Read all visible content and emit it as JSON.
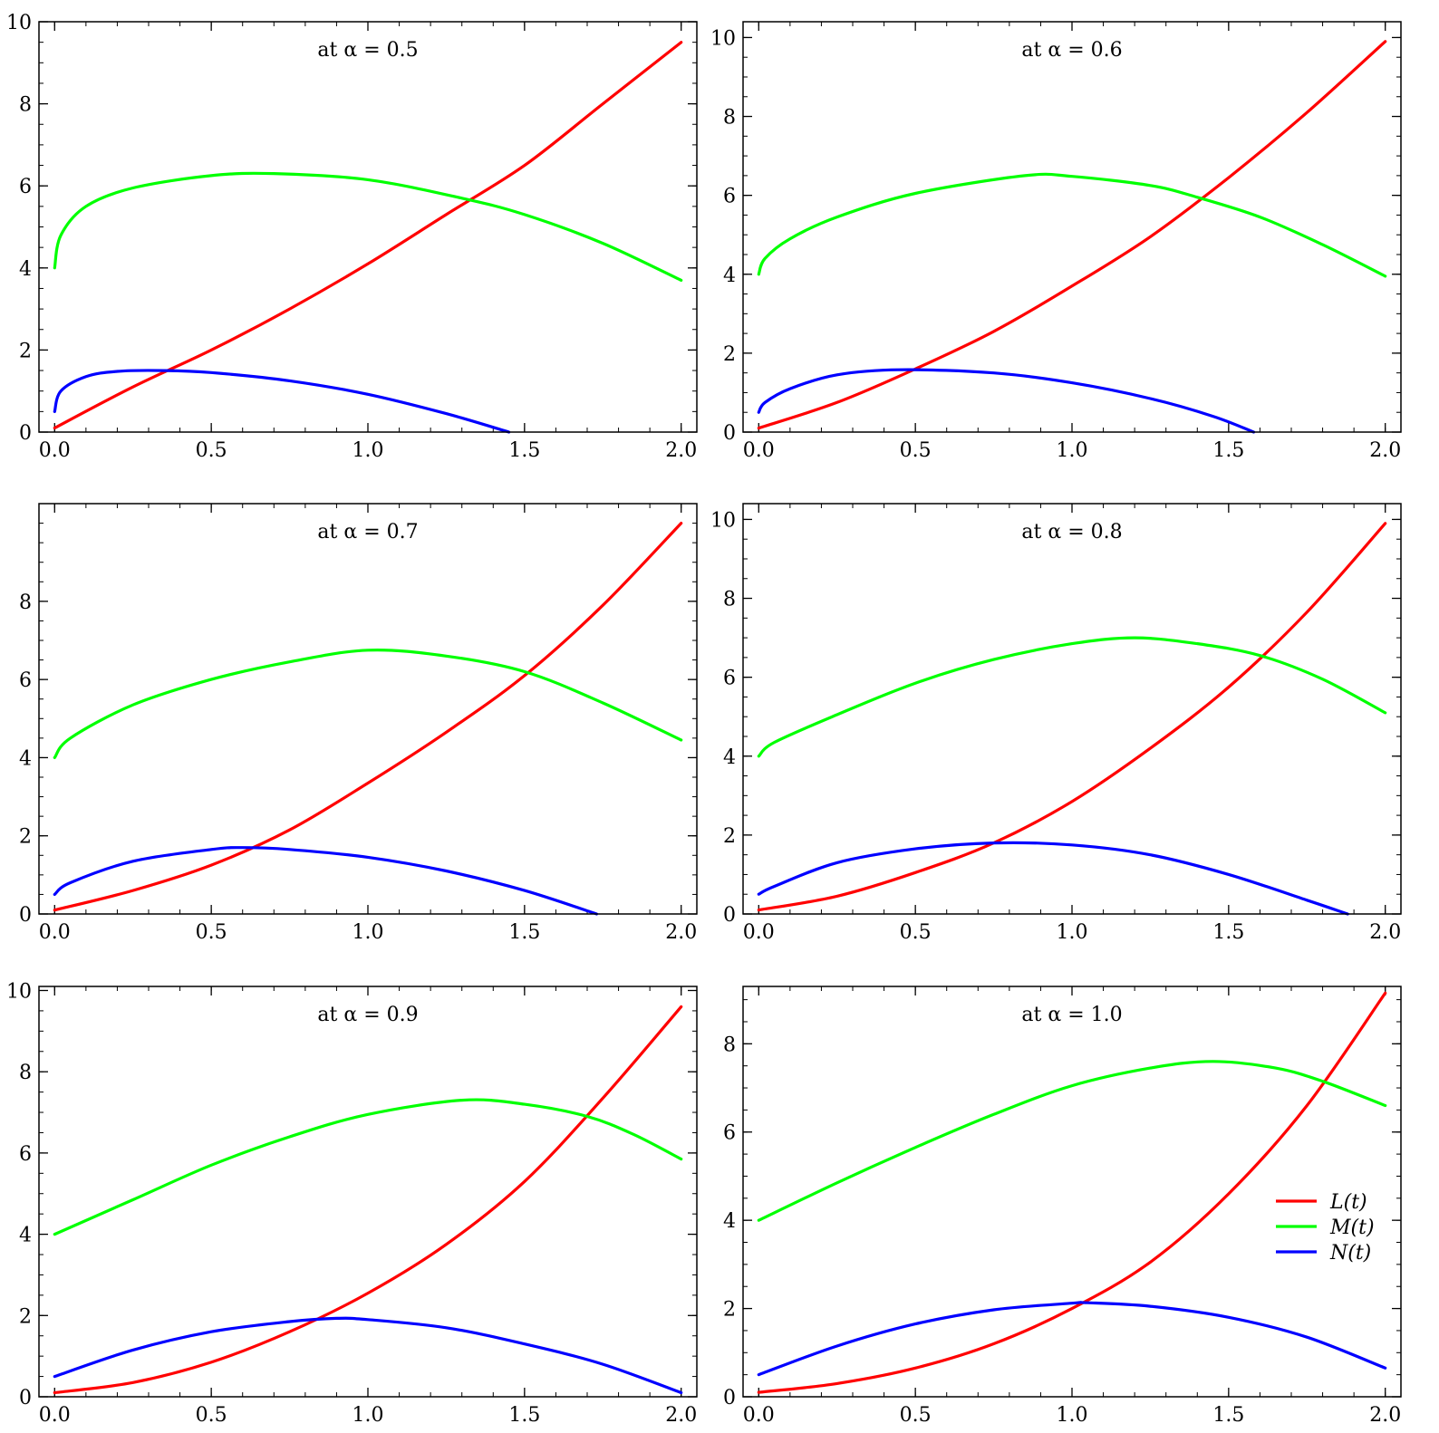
{
  "legend": {
    "placement": "right-center of last panel",
    "entries": [
      {
        "label": "L(t)",
        "color": "#ff0000"
      },
      {
        "label": "M(t)",
        "color": "#00ff00"
      },
      {
        "label": "N(t)",
        "color": "#0000ff"
      }
    ]
  },
  "chart_data": [
    {
      "type": "line",
      "title": "at α = 0.5",
      "xlim": [
        -0.05,
        2.05
      ],
      "ylim": [
        0,
        10
      ],
      "xticks": [
        "0.0",
        "0.5",
        "1.0",
        "1.5",
        "2.0"
      ],
      "xtick_values": [
        0,
        0.5,
        1,
        1.5,
        2
      ],
      "yticks": [
        "0",
        "2",
        "4",
        "6",
        "8",
        "10"
      ],
      "ytick_values": [
        0,
        2,
        4,
        6,
        8,
        10
      ],
      "series": [
        {
          "name": "L(t)",
          "color": "#ff0000",
          "x": [
            0,
            0.25,
            0.5,
            0.75,
            1.0,
            1.25,
            1.5,
            1.75,
            2.0
          ],
          "y": [
            0.1,
            1.1,
            2.0,
            3.0,
            4.1,
            5.3,
            6.5,
            8.0,
            9.5
          ]
        },
        {
          "name": "M(t)",
          "color": "#00ff00",
          "x": [
            0,
            0.02,
            0.1,
            0.25,
            0.5,
            0.7,
            1.0,
            1.3,
            1.5,
            1.75,
            2.0
          ],
          "y": [
            4.0,
            4.8,
            5.5,
            5.95,
            6.25,
            6.3,
            6.15,
            5.7,
            5.3,
            4.6,
            3.7
          ]
        },
        {
          "name": "N(t)",
          "color": "#0000ff",
          "x": [
            0,
            0.02,
            0.1,
            0.2,
            0.35,
            0.5,
            0.75,
            1.0,
            1.25,
            1.45
          ],
          "y": [
            0.5,
            1.0,
            1.35,
            1.48,
            1.5,
            1.45,
            1.25,
            0.92,
            0.45,
            0.0
          ]
        }
      ]
    },
    {
      "type": "line",
      "title": "at α = 0.6",
      "xlim": [
        -0.05,
        2.05
      ],
      "ylim": [
        0,
        10.4
      ],
      "xticks": [
        "0.0",
        "0.5",
        "1.0",
        "1.5",
        "2.0"
      ],
      "xtick_values": [
        0,
        0.5,
        1,
        1.5,
        2
      ],
      "yticks": [
        "0",
        "2",
        "4",
        "6",
        "8",
        "10"
      ],
      "ytick_values": [
        0,
        2,
        4,
        6,
        8,
        10
      ],
      "series": [
        {
          "name": "L(t)",
          "color": "#ff0000",
          "x": [
            0,
            0.25,
            0.5,
            0.75,
            1.0,
            1.25,
            1.5,
            1.75,
            2.0
          ],
          "y": [
            0.1,
            0.75,
            1.6,
            2.55,
            3.7,
            4.95,
            6.45,
            8.1,
            9.9
          ]
        },
        {
          "name": "M(t)",
          "color": "#00ff00",
          "x": [
            0,
            0.02,
            0.1,
            0.25,
            0.5,
            0.85,
            1.0,
            1.25,
            1.4,
            1.6,
            1.8,
            2.0
          ],
          "y": [
            4.0,
            4.4,
            4.9,
            5.45,
            6.05,
            6.5,
            6.48,
            6.25,
            5.95,
            5.45,
            4.75,
            3.95
          ]
        },
        {
          "name": "N(t)",
          "color": "#0000ff",
          "x": [
            0,
            0.02,
            0.1,
            0.25,
            0.45,
            0.75,
            1.0,
            1.25,
            1.45,
            1.58
          ],
          "y": [
            0.5,
            0.75,
            1.1,
            1.45,
            1.58,
            1.5,
            1.25,
            0.85,
            0.4,
            0.0
          ]
        }
      ]
    },
    {
      "type": "line",
      "title": "at α = 0.7",
      "xlim": [
        -0.05,
        2.05
      ],
      "ylim": [
        0,
        10.5
      ],
      "xticks": [
        "0.0",
        "0.5",
        "1.0",
        "1.5",
        "2.0"
      ],
      "xtick_values": [
        0,
        0.5,
        1,
        1.5,
        2
      ],
      "yticks": [
        "0",
        "2",
        "4",
        "6",
        "8"
      ],
      "ytick_values": [
        0,
        2,
        4,
        6,
        8
      ],
      "series": [
        {
          "name": "L(t)",
          "color": "#ff0000",
          "x": [
            0,
            0.25,
            0.5,
            0.75,
            1.0,
            1.25,
            1.5,
            1.75,
            2.0
          ],
          "y": [
            0.1,
            0.6,
            1.25,
            2.15,
            3.35,
            4.65,
            6.1,
            7.9,
            10.0
          ]
        },
        {
          "name": "M(t)",
          "color": "#00ff00",
          "x": [
            0,
            0.05,
            0.25,
            0.5,
            0.75,
            1.0,
            1.25,
            1.5,
            1.75,
            2.0
          ],
          "y": [
            4.0,
            4.5,
            5.35,
            6.0,
            6.45,
            6.75,
            6.6,
            6.2,
            5.4,
            4.45
          ]
        },
        {
          "name": "N(t)",
          "color": "#0000ff",
          "x": [
            0,
            0.05,
            0.25,
            0.5,
            0.6,
            0.75,
            1.0,
            1.25,
            1.5,
            1.73
          ],
          "y": [
            0.5,
            0.8,
            1.35,
            1.65,
            1.7,
            1.65,
            1.45,
            1.1,
            0.6,
            0.0
          ]
        }
      ]
    },
    {
      "type": "line",
      "title": "at α = 0.8",
      "xlim": [
        -0.05,
        2.05
      ],
      "ylim": [
        0,
        10.4
      ],
      "xticks": [
        "0.0",
        "0.5",
        "1.0",
        "1.5",
        "2.0"
      ],
      "xtick_values": [
        0,
        0.5,
        1,
        1.5,
        2
      ],
      "yticks": [
        "0",
        "2",
        "4",
        "6",
        "8",
        "10"
      ],
      "ytick_values": [
        0,
        2,
        4,
        6,
        8,
        10
      ],
      "series": [
        {
          "name": "L(t)",
          "color": "#ff0000",
          "x": [
            0,
            0.25,
            0.5,
            0.75,
            1.0,
            1.25,
            1.5,
            1.75,
            2.0
          ],
          "y": [
            0.1,
            0.45,
            1.05,
            1.8,
            2.85,
            4.2,
            5.75,
            7.65,
            9.9
          ]
        },
        {
          "name": "M(t)",
          "color": "#00ff00",
          "x": [
            0,
            0.05,
            0.25,
            0.5,
            0.75,
            1.0,
            1.2,
            1.4,
            1.6,
            1.8,
            2.0
          ],
          "y": [
            4.0,
            4.35,
            5.05,
            5.85,
            6.45,
            6.85,
            7.0,
            6.85,
            6.55,
            5.95,
            5.1
          ]
        },
        {
          "name": "N(t)",
          "color": "#0000ff",
          "x": [
            0,
            0.05,
            0.25,
            0.5,
            0.75,
            1.0,
            1.25,
            1.5,
            1.75,
            1.88
          ],
          "y": [
            0.5,
            0.7,
            1.3,
            1.65,
            1.8,
            1.75,
            1.5,
            1.0,
            0.35,
            0.0
          ]
        }
      ]
    },
    {
      "type": "line",
      "title": "at α = 0.9",
      "xlim": [
        -0.05,
        2.05
      ],
      "ylim": [
        0,
        10.1
      ],
      "xticks": [
        "0.0",
        "0.5",
        "1.0",
        "1.5",
        "2.0"
      ],
      "xtick_values": [
        0,
        0.5,
        1,
        1.5,
        2
      ],
      "yticks": [
        "0",
        "2",
        "4",
        "6",
        "8",
        "10"
      ],
      "ytick_values": [
        0,
        2,
        4,
        6,
        8,
        10
      ],
      "series": [
        {
          "name": "L(t)",
          "color": "#ff0000",
          "x": [
            0,
            0.25,
            0.5,
            0.75,
            1.0,
            1.25,
            1.5,
            1.75,
            2.0
          ],
          "y": [
            0.1,
            0.35,
            0.85,
            1.6,
            2.55,
            3.75,
            5.3,
            7.35,
            9.6
          ]
        },
        {
          "name": "M(t)",
          "color": "#00ff00",
          "x": [
            0,
            0.25,
            0.5,
            0.75,
            1.0,
            1.3,
            1.5,
            1.7,
            1.85,
            2.0
          ],
          "y": [
            4.0,
            4.85,
            5.7,
            6.4,
            6.95,
            7.3,
            7.2,
            6.9,
            6.45,
            5.85
          ]
        },
        {
          "name": "N(t)",
          "color": "#0000ff",
          "x": [
            0,
            0.25,
            0.5,
            0.75,
            0.9,
            1.0,
            1.25,
            1.5,
            1.75,
            2.0
          ],
          "y": [
            0.5,
            1.15,
            1.6,
            1.85,
            1.93,
            1.9,
            1.7,
            1.3,
            0.8,
            0.1
          ]
        }
      ]
    },
    {
      "type": "line",
      "title": "at α = 1.0",
      "xlim": [
        -0.05,
        2.05
      ],
      "ylim": [
        0,
        9.3
      ],
      "xticks": [
        "0.0",
        "0.5",
        "1.0",
        "1.5",
        "2.0"
      ],
      "xtick_values": [
        0,
        0.5,
        1,
        1.5,
        2
      ],
      "yticks": [
        "0",
        "2",
        "4",
        "6",
        "8"
      ],
      "ytick_values": [
        0,
        2,
        4,
        6,
        8
      ],
      "series": [
        {
          "name": "L(t)",
          "color": "#ff0000",
          "x": [
            0,
            0.25,
            0.5,
            0.75,
            1.0,
            1.25,
            1.5,
            1.75,
            2.0
          ],
          "y": [
            0.1,
            0.3,
            0.65,
            1.2,
            2.0,
            3.05,
            4.6,
            6.6,
            9.15
          ]
        },
        {
          "name": "M(t)",
          "color": "#00ff00",
          "x": [
            0,
            0.25,
            0.5,
            0.75,
            1.0,
            1.25,
            1.45,
            1.65,
            1.8,
            2.0
          ],
          "y": [
            4.0,
            4.85,
            5.65,
            6.4,
            7.05,
            7.45,
            7.6,
            7.45,
            7.15,
            6.6
          ]
        },
        {
          "name": "N(t)",
          "color": "#0000ff",
          "x": [
            0,
            0.25,
            0.5,
            0.75,
            1.0,
            1.05,
            1.25,
            1.5,
            1.75,
            2.0
          ],
          "y": [
            0.5,
            1.15,
            1.65,
            1.97,
            2.12,
            2.13,
            2.05,
            1.8,
            1.35,
            0.65
          ]
        }
      ]
    }
  ]
}
